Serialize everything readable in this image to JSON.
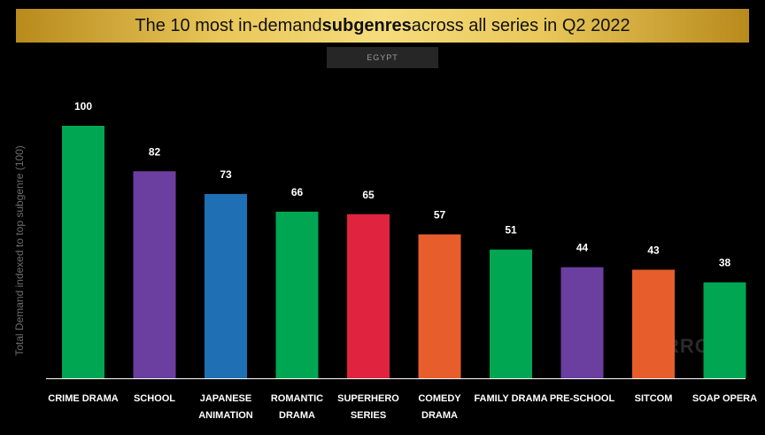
{
  "header": {
    "title_pre": "The 10 most in-demand ",
    "title_bold": "subgenres",
    "title_post": " across all series in Q2 2022",
    "region": "EGYPT"
  },
  "watermark": "PARROT",
  "chart_data": {
    "type": "bar",
    "title": "The 10 most in-demand subgenres across all series in Q2 2022",
    "subtitle": "EGYPT",
    "xlabel": "",
    "ylabel": "Total Demand indexed to top subgenre (100)",
    "ylim": [
      0,
      100
    ],
    "grid": false,
    "categories": [
      [
        "CRIME DRAMA"
      ],
      [
        "SCHOOL"
      ],
      [
        "JAPANESE",
        "ANIMATION"
      ],
      [
        "ROMANTIC",
        "DRAMA"
      ],
      [
        "SUPERHERO",
        "SERIES"
      ],
      [
        "COMEDY",
        "DRAMA"
      ],
      [
        "FAMILY DRAMA"
      ],
      [
        "PRE-SCHOOL"
      ],
      [
        "SITCOM"
      ],
      [
        "SOAP OPERA"
      ]
    ],
    "values": [
      100,
      82,
      73,
      66,
      65,
      57,
      51,
      44,
      43,
      38
    ],
    "colors": [
      "#00a651",
      "#6b3fa0",
      "#1f6fb5",
      "#00a651",
      "#e0243f",
      "#e85d2c",
      "#00a651",
      "#6b3fa0",
      "#e85d2c",
      "#00a651"
    ]
  }
}
